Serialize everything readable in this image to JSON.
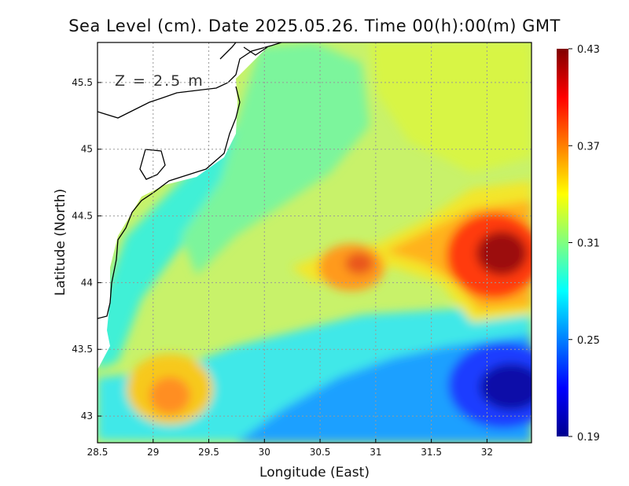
{
  "chart_data": {
    "type": "heatmap",
    "title": "Sea Level (cm). Date 2025.05.26. Time 00(h):00(m) GMT",
    "xlabel": "Longitude (East)",
    "ylabel": "Latitude (North)",
    "annotation": "Z = 2.5 m",
    "xlim": [
      28.5,
      32.4
    ],
    "ylim": [
      42.8,
      45.8
    ],
    "x_ticks": [
      "28.5",
      "29",
      "29.5",
      "30",
      "30.5",
      "31",
      "31.5",
      "32"
    ],
    "y_ticks": [
      "43",
      "43.5",
      "44",
      "44.5",
      "45",
      "45.5"
    ],
    "grid": true,
    "colorbar": {
      "min": 0.19,
      "max": 0.43,
      "ticks": [
        "0.19",
        "0.25",
        "0.31",
        "0.37",
        "0.43"
      ],
      "colormap": "jet"
    },
    "features": [
      {
        "name": "eastern maximum",
        "lon": 32.15,
        "lat": 44.2,
        "value": 0.43
      },
      {
        "name": "central eddy",
        "lon": 30.85,
        "lat": 44.1,
        "value": 0.38
      },
      {
        "name": "south-western eddy",
        "lon": 29.15,
        "lat": 43.1,
        "value": 0.37
      },
      {
        "name": "south-eastern minimum",
        "lon": 32.25,
        "lat": 43.2,
        "value": 0.19
      },
      {
        "name": "southern low band",
        "lon": 31.3,
        "lat": 43.4,
        "value": 0.25
      }
    ],
    "background_value": 0.32
  }
}
